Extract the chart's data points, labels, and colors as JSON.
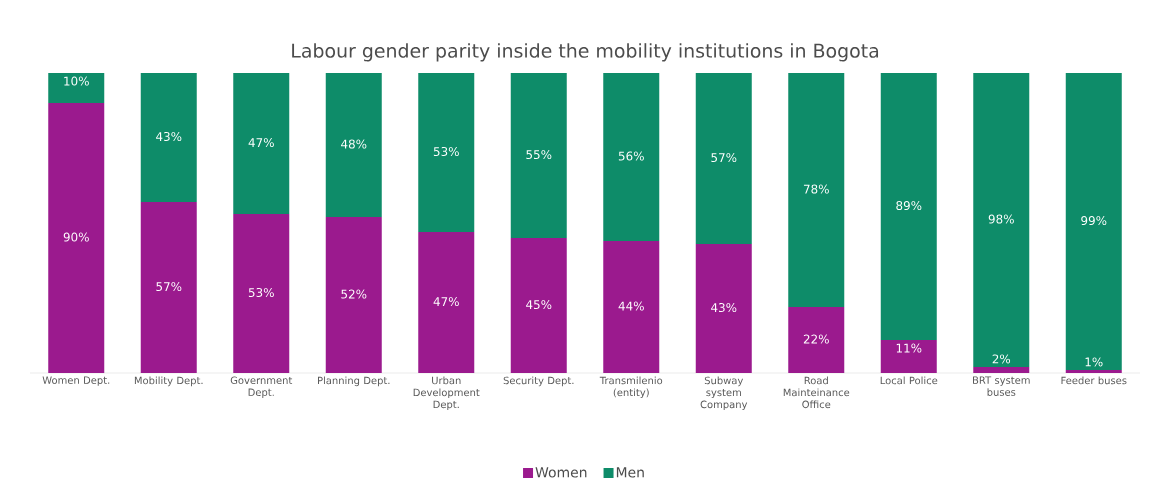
{
  "chart_data": {
    "type": "bar",
    "stacked": true,
    "title": "Labour gender parity inside the mobility institutions in Bogota",
    "categories": [
      "Women Dept.",
      "Mobility Dept.",
      "Government Dept.",
      "Planning Dept.",
      "Urban Development Dept.",
      "Security Dept.",
      "Transmilenio (entity)",
      "Subway system Company",
      "Road Mainteinance Office",
      "Local Police",
      "BRT system buses",
      "Feeder buses"
    ],
    "series": [
      {
        "name": "Women",
        "color": "#9b1a8e",
        "values": [
          90,
          57,
          53,
          52,
          47,
          45,
          44,
          43,
          22,
          11,
          2,
          1
        ],
        "value_labels": [
          "90%",
          "57%",
          "53%",
          "52%",
          "47%",
          "45%",
          "44%",
          "43%",
          "22%",
          "11%",
          "2%",
          "1%"
        ]
      },
      {
        "name": "Men",
        "color": "#0e8c69",
        "values": [
          10,
          43,
          47,
          48,
          53,
          55,
          56,
          57,
          78,
          89,
          98,
          99
        ],
        "value_labels": [
          "10%",
          "43%",
          "47%",
          "48%",
          "53%",
          "55%",
          "56%",
          "57%",
          "78%",
          "89%",
          "98%",
          "99%"
        ]
      }
    ],
    "ylim": [
      0,
      100
    ],
    "tick_labels": "x",
    "legend": "bottom"
  }
}
